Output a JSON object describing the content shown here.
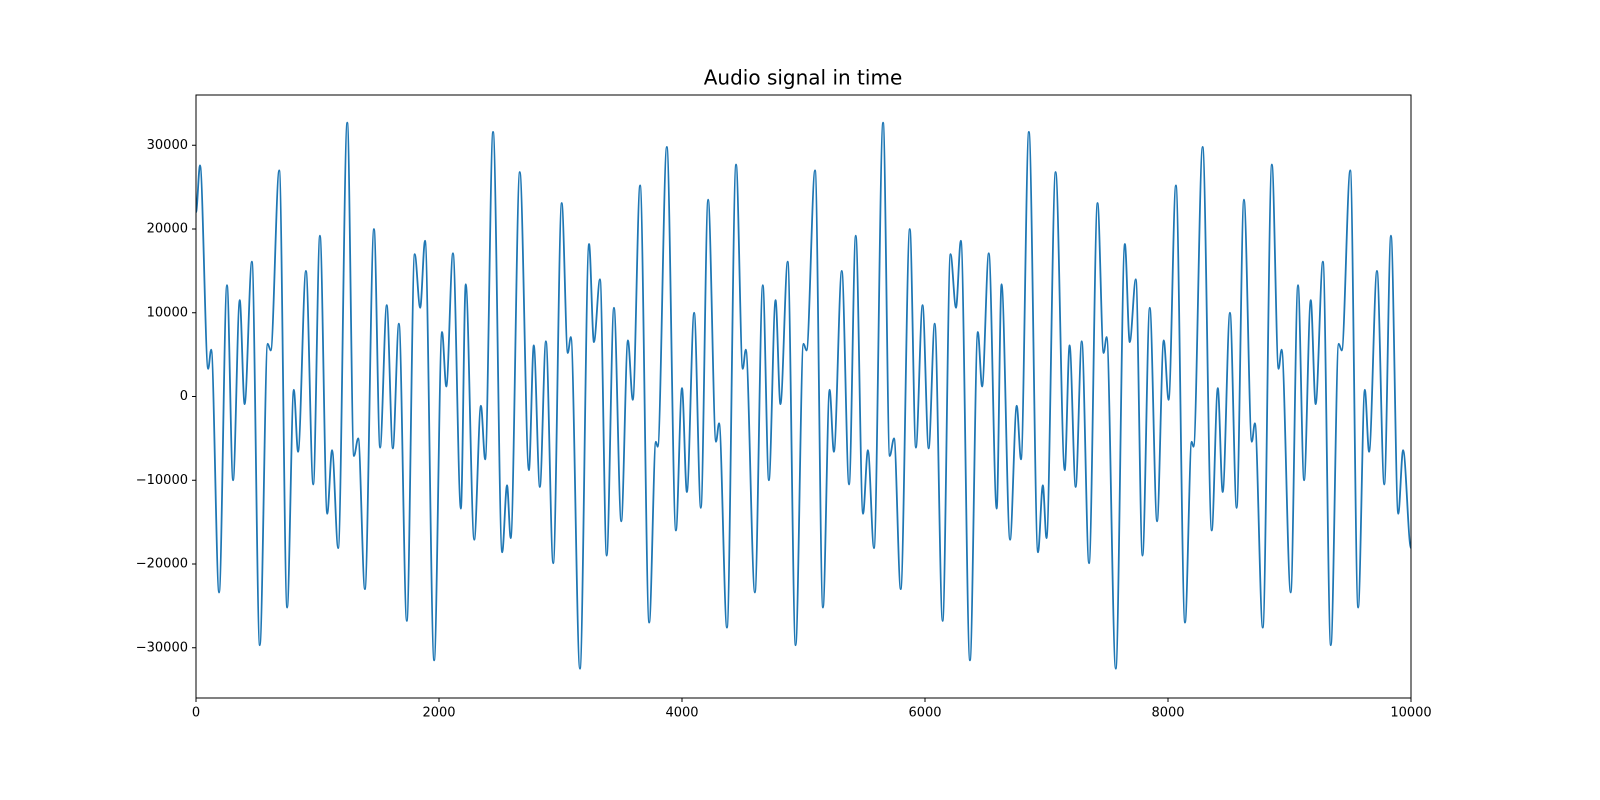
{
  "chart_data": {
    "type": "line",
    "title": "Audio signal in time",
    "x": [
      0,
      33,
      100,
      125,
      190,
      255,
      305,
      360,
      400,
      460,
      525,
      590,
      615,
      685,
      750,
      805,
      840,
      905,
      965,
      1020,
      1080,
      1120,
      1170,
      1245,
      1300,
      1335,
      1390,
      1465,
      1515,
      1570,
      1620,
      1670,
      1735,
      1800,
      1845,
      1885,
      1960,
      2025,
      2060,
      2115,
      2180,
      2220,
      2290,
      2345,
      2380,
      2445,
      2520,
      2560,
      2590,
      2665,
      2740,
      2780,
      2830,
      2880,
      2940,
      3010,
      3060,
      3085,
      3160,
      3235,
      3275,
      3325,
      3380,
      3440,
      3500,
      3555,
      3595,
      3655,
      3730,
      3785,
      3800,
      3875,
      3950,
      4000,
      4040,
      4100,
      4155,
      4215,
      4280,
      4305,
      4370,
      4445,
      4500,
      4525,
      4600,
      4665,
      4715,
      4770,
      4810,
      4870,
      4935,
      5000,
      5025,
      5095,
      5160,
      5215,
      5250,
      5315,
      5375,
      5430,
      5490,
      5530,
      5580,
      5655,
      5710,
      5745,
      5800,
      5875,
      5925,
      5980,
      6030,
      6080,
      6145,
      6210,
      6255,
      6295,
      6370,
      6435,
      6470,
      6525,
      6590,
      6630,
      6700,
      6755,
      6790,
      6855,
      6930,
      6970,
      7000,
      7075,
      7150,
      7190,
      7240,
      7290,
      7350,
      7420,
      7470,
      7495,
      7570,
      7645,
      7685,
      7735,
      7790,
      7850,
      7910,
      7965,
      8005,
      8065,
      8140,
      8195,
      8210,
      8285,
      8360,
      8410,
      8450,
      8510,
      8565,
      8625,
      8690,
      8715,
      8780,
      8855,
      8910,
      8935,
      9010,
      9070,
      9120,
      9175,
      9215,
      9275,
      9340,
      9405,
      9430,
      9500,
      9565,
      9620,
      9655,
      9720,
      9780,
      9835,
      9895,
      9935,
      10000
    ],
    "values": [
      22000,
      27600,
      3300,
      5600,
      -23400,
      13300,
      -10000,
      11500,
      -900,
      16100,
      -29700,
      6300,
      5500,
      27000,
      -25200,
      800,
      -6600,
      15000,
      -10500,
      19200,
      -14000,
      -6400,
      -18100,
      32700,
      -7100,
      -5000,
      -23000,
      20000,
      -6100,
      10900,
      -6200,
      8700,
      -26800,
      17000,
      10600,
      18600,
      -31500,
      7700,
      1200,
      17100,
      -13400,
      13400,
      -17100,
      -1100,
      -7500,
      31600,
      -18600,
      -10600,
      -16900,
      26800,
      -8800,
      6100,
      -10800,
      6600,
      -19900,
      23100,
      5200,
      7100,
      -32500,
      18200,
      6500,
      14000,
      -19000,
      10600,
      -14900,
      6700,
      -400,
      25200,
      -27000,
      -5400,
      -6000,
      29800,
      -16000,
      1000,
      -11400,
      10000,
      -13300,
      23500,
      -5400,
      -3200,
      -27600,
      27700,
      3300,
      5600,
      -23400,
      13300,
      -10000,
      11500,
      -900,
      16100,
      -29700,
      6300,
      5500,
      27000,
      -25200,
      800,
      -6600,
      15000,
      -10500,
      19200,
      -14000,
      -6400,
      -18100,
      32700,
      -7100,
      -5000,
      -23000,
      20000,
      -6100,
      10900,
      -6200,
      8700,
      -26800,
      17000,
      10600,
      18600,
      -31500,
      7700,
      1200,
      17100,
      -13400,
      13400,
      -17100,
      -1100,
      -7500,
      31600,
      -18600,
      -10600,
      -16900,
      26800,
      -8800,
      6100,
      -10800,
      6600,
      -19900,
      23100,
      5200,
      7100,
      -32500,
      18200,
      6500,
      14000,
      -19000,
      10600,
      -14900,
      6700,
      -400,
      25200,
      -27000,
      -5400,
      -6000,
      29800,
      -16000,
      1000,
      -11400,
      10000,
      -13300,
      23500,
      -5400,
      -3200,
      -27600,
      27700,
      3300,
      5600,
      -23400,
      13300,
      -10000,
      11500,
      -900,
      16100,
      -29700,
      6300,
      5500,
      27000,
      -25200,
      800,
      -6600,
      15000,
      -10500,
      19200,
      -14000,
      -6400,
      -18100
    ],
    "color": "#1f77b4",
    "xlim": [
      0,
      10000
    ],
    "xticks": [
      0,
      2000,
      4000,
      6000,
      8000,
      10000
    ],
    "ylim": [
      -36000,
      36000
    ],
    "yticks": [
      {
        "value": -30000,
        "label": "−30000"
      },
      {
        "value": -20000,
        "label": "−20000"
      },
      {
        "value": -10000,
        "label": "−10000"
      },
      0,
      10000,
      20000,
      30000
    ]
  }
}
